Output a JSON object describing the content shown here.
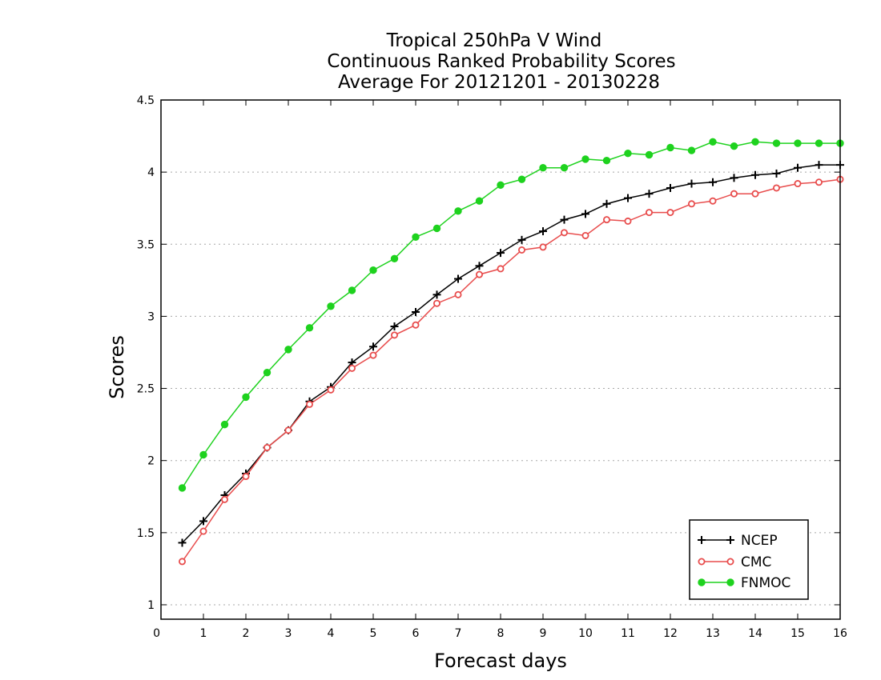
{
  "chart_data": {
    "type": "line",
    "title": [
      "Tropical 250hPa V Wind",
      "Continuous Ranked Probability Scores",
      "Average For 20121201 - 20130228"
    ],
    "xlabel": "Forecast days",
    "ylabel": "Scores",
    "xlim": [
      0,
      16
    ],
    "ylim": [
      0.9,
      4.5
    ],
    "xticks": [
      "0",
      "1",
      "2",
      "3",
      "4",
      "5",
      "6",
      "7",
      "8",
      "9",
      "10",
      "11",
      "12",
      "13",
      "14",
      "15",
      "16"
    ],
    "yticks": [
      "1",
      "1.5",
      "2",
      "2.5",
      "3",
      "3.5",
      "4",
      "4.5"
    ],
    "grid": "horizontal dotted",
    "legend_position": "bottom-right",
    "x": [
      0.5,
      1,
      1.5,
      2,
      2.5,
      3,
      3.5,
      4,
      4.5,
      5,
      5.5,
      6,
      6.5,
      7,
      7.5,
      8,
      8.5,
      9,
      9.5,
      10,
      10.5,
      11,
      11.5,
      12,
      12.5,
      13,
      13.5,
      14,
      14.5,
      15,
      15.5,
      16
    ],
    "series": [
      {
        "name": "NCEP",
        "color": "#000000",
        "marker": "plus",
        "values": [
          1.43,
          1.58,
          1.76,
          1.91,
          2.09,
          2.21,
          2.41,
          2.51,
          2.68,
          2.79,
          2.93,
          3.03,
          3.15,
          3.26,
          3.35,
          3.44,
          3.53,
          3.59,
          3.67,
          3.71,
          3.78,
          3.82,
          3.85,
          3.89,
          3.92,
          3.93,
          3.96,
          3.98,
          3.99,
          4.03,
          4.05,
          4.05
        ]
      },
      {
        "name": "CMC",
        "color": "#e84c4c",
        "marker": "open-circle",
        "values": [
          1.3,
          1.51,
          1.73,
          1.89,
          2.09,
          2.21,
          2.39,
          2.49,
          2.64,
          2.73,
          2.87,
          2.94,
          3.09,
          3.15,
          3.29,
          3.33,
          3.46,
          3.48,
          3.58,
          3.56,
          3.67,
          3.66,
          3.72,
          3.72,
          3.78,
          3.8,
          3.85,
          3.85,
          3.89,
          3.92,
          3.93,
          3.95
        ]
      },
      {
        "name": "FNMOC",
        "color": "#1ed21e",
        "marker": "filled-circle",
        "values": [
          1.81,
          2.04,
          2.25,
          2.44,
          2.61,
          2.77,
          2.92,
          3.07,
          3.18,
          3.32,
          3.4,
          3.55,
          3.61,
          3.73,
          3.8,
          3.91,
          3.95,
          4.03,
          4.03,
          4.09,
          4.08,
          4.13,
          4.12,
          4.17,
          4.15,
          4.21,
          4.18,
          4.21,
          4.2,
          4.2,
          4.2,
          4.2
        ]
      }
    ]
  }
}
